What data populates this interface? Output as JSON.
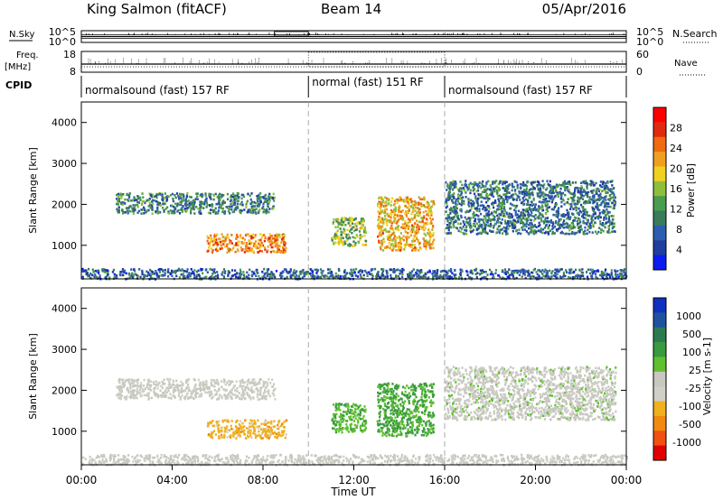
{
  "header": {
    "station": "King Salmon (fitACF)",
    "beam": "Beam 14",
    "date": "05/Apr/2016"
  },
  "colors": {
    "power_scale": [
      "#0a1cf0",
      "#1f3d9e",
      "#2e5db0",
      "#3a7b5a",
      "#4a9c4e",
      "#8fbf3a",
      "#f0d020",
      "#f0a020",
      "#f06a10",
      "#e02a10",
      "#ff0000"
    ],
    "velocity_scale": [
      "#e00000",
      "#f05010",
      "#f08a10",
      "#f0b020",
      "#d0d0c8",
      "#c8c8c0",
      "#60c030",
      "#3a9a40",
      "#2e7a50",
      "#2050a0",
      "#1030c0"
    ]
  },
  "chart_data": [
    {
      "type": "line",
      "panel": "noise",
      "ylabel_left": "N.Sky",
      "ylabel_right": "N.Search",
      "left_ticks": [
        "10^5",
        "10^0"
      ],
      "right_ticks": [
        "10^5",
        "10^0"
      ]
    },
    {
      "type": "line",
      "panel": "frequency",
      "ylabel_left": [
        "Freq.",
        "[MHz]"
      ],
      "ylabel_right": "Nave",
      "left_ticks": [
        18,
        8
      ],
      "right_ticks": [
        60,
        0
      ],
      "ylim_left": [
        8,
        18
      ],
      "ylim_right": [
        0,
        60
      ]
    },
    {
      "type": "table",
      "panel": "cpid",
      "label": "CPID",
      "segments": [
        {
          "start_hour": 0,
          "end_hour": 10,
          "label": "normalsound (fast) 157 RF"
        },
        {
          "start_hour": 10,
          "end_hour": 16,
          "label": "normal (fast) 151 RF"
        },
        {
          "start_hour": 16,
          "end_hour": 24,
          "label": "normalsound (fast) 157 RF"
        }
      ]
    },
    {
      "type": "heatmap",
      "panel": "power",
      "ylabel": "Slant Range [km]",
      "yticks": [
        1000,
        2000,
        3000,
        4000
      ],
      "ylim": [
        180,
        4500
      ],
      "xlim_hours": [
        0,
        24
      ],
      "colorbar_label": "Power [dB]",
      "colorbar_ticks": [
        4,
        8,
        12,
        16,
        20,
        24,
        28
      ],
      "clim": [
        0,
        30
      ],
      "echo_regions": [
        {
          "t0": 1.5,
          "t1": 8.5,
          "r0": 1800,
          "r1": 2300,
          "level": 9
        },
        {
          "t0": 5.5,
          "t1": 9.0,
          "r0": 850,
          "r1": 1300,
          "level": 22
        },
        {
          "t0": 11.0,
          "t1": 12.5,
          "r0": 1000,
          "r1": 1700,
          "level": 14
        },
        {
          "t0": 13.0,
          "t1": 15.5,
          "r0": 900,
          "r1": 2200,
          "level": 20
        },
        {
          "t0": 16.0,
          "t1": 23.5,
          "r0": 1300,
          "r1": 2600,
          "level": 8
        },
        {
          "t0": 0.0,
          "t1": 24.0,
          "r0": 200,
          "r1": 450,
          "level": 6
        }
      ]
    },
    {
      "type": "heatmap",
      "panel": "velocity",
      "ylabel": "Slant Range [km]",
      "yticks": [
        1000,
        2000,
        3000,
        4000
      ],
      "ylim": [
        180,
        4500
      ],
      "xlim_hours": [
        0,
        24
      ],
      "colorbar_label": "Velocity [m s-1]",
      "colorbar_ticks": [
        "1000",
        "500",
        "100",
        "25",
        "-25",
        "-100",
        "-500",
        "-1000"
      ],
      "echo_regions": [
        {
          "t0": 1.5,
          "t1": 8.5,
          "r0": 1800,
          "r1": 2300,
          "velocity": -40
        },
        {
          "t0": 5.5,
          "t1": 9.0,
          "r0": 850,
          "r1": 1300,
          "velocity": -300
        },
        {
          "t0": 11.0,
          "t1": 12.5,
          "r0": 1000,
          "r1": 1700,
          "velocity": 200
        },
        {
          "t0": 13.0,
          "t1": 15.5,
          "r0": 900,
          "r1": 2200,
          "velocity": 250
        },
        {
          "t0": 16.0,
          "t1": 23.5,
          "r0": 1300,
          "r1": 2600,
          "velocity": 0
        },
        {
          "t0": 0.0,
          "t1": 24.0,
          "r0": 200,
          "r1": 450,
          "velocity": -30
        }
      ]
    }
  ],
  "xaxis": {
    "ticks": [
      "00:00",
      "04:00",
      "08:00",
      "12:00",
      "16:00",
      "20:00",
      "00:00"
    ],
    "label": "Time UT",
    "dashed_hours": [
      10,
      16
    ]
  }
}
